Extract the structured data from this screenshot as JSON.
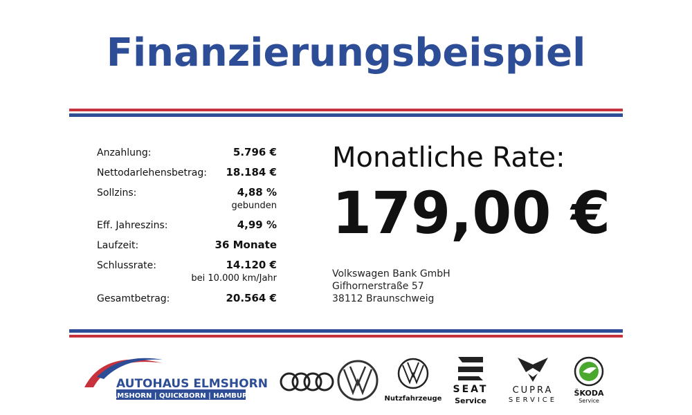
{
  "header": {
    "title": "Finanzierungsbeispiel"
  },
  "table": {
    "rows": [
      [
        "Anzahlung:",
        "5.796 €"
      ],
      [
        "Nettodarlehensbetrag:",
        "18.184 €"
      ],
      [
        "Sollzins:",
        "4,88 %",
        "gebunden"
      ],
      [
        "Eff. Jahreszins:",
        "4,99 %"
      ],
      [
        "Laufzeit:",
        "36 Monate"
      ],
      [
        "Schlussrate:",
        "14.120 €",
        "bei 10.000 km/Jahr"
      ],
      [
        "Gesamtbetrag:",
        "20.564 €"
      ]
    ]
  },
  "rate": {
    "label": "Monatliche Rate:",
    "amount": "179,00 €"
  },
  "bank": {
    "lines": [
      "Volkswagen Bank GmbH",
      "Gifhornerstraße 57",
      "38112 Braunschweig"
    ]
  },
  "footer": {
    "dealer": {
      "name": "AUTOHAUS ELMSHORN",
      "locations": "ELMSHORN | QUICKBORN | HAMBURG"
    },
    "brands": {
      "vw_nutzfahrzeuge": [
        "Nutzfahrzeuge"
      ],
      "seat": [
        "SEAT",
        "Service"
      ],
      "cupra": [
        "CUPRA",
        "SERVICE"
      ],
      "skoda": [
        "ŠKODA",
        "Service"
      ]
    }
  }
}
